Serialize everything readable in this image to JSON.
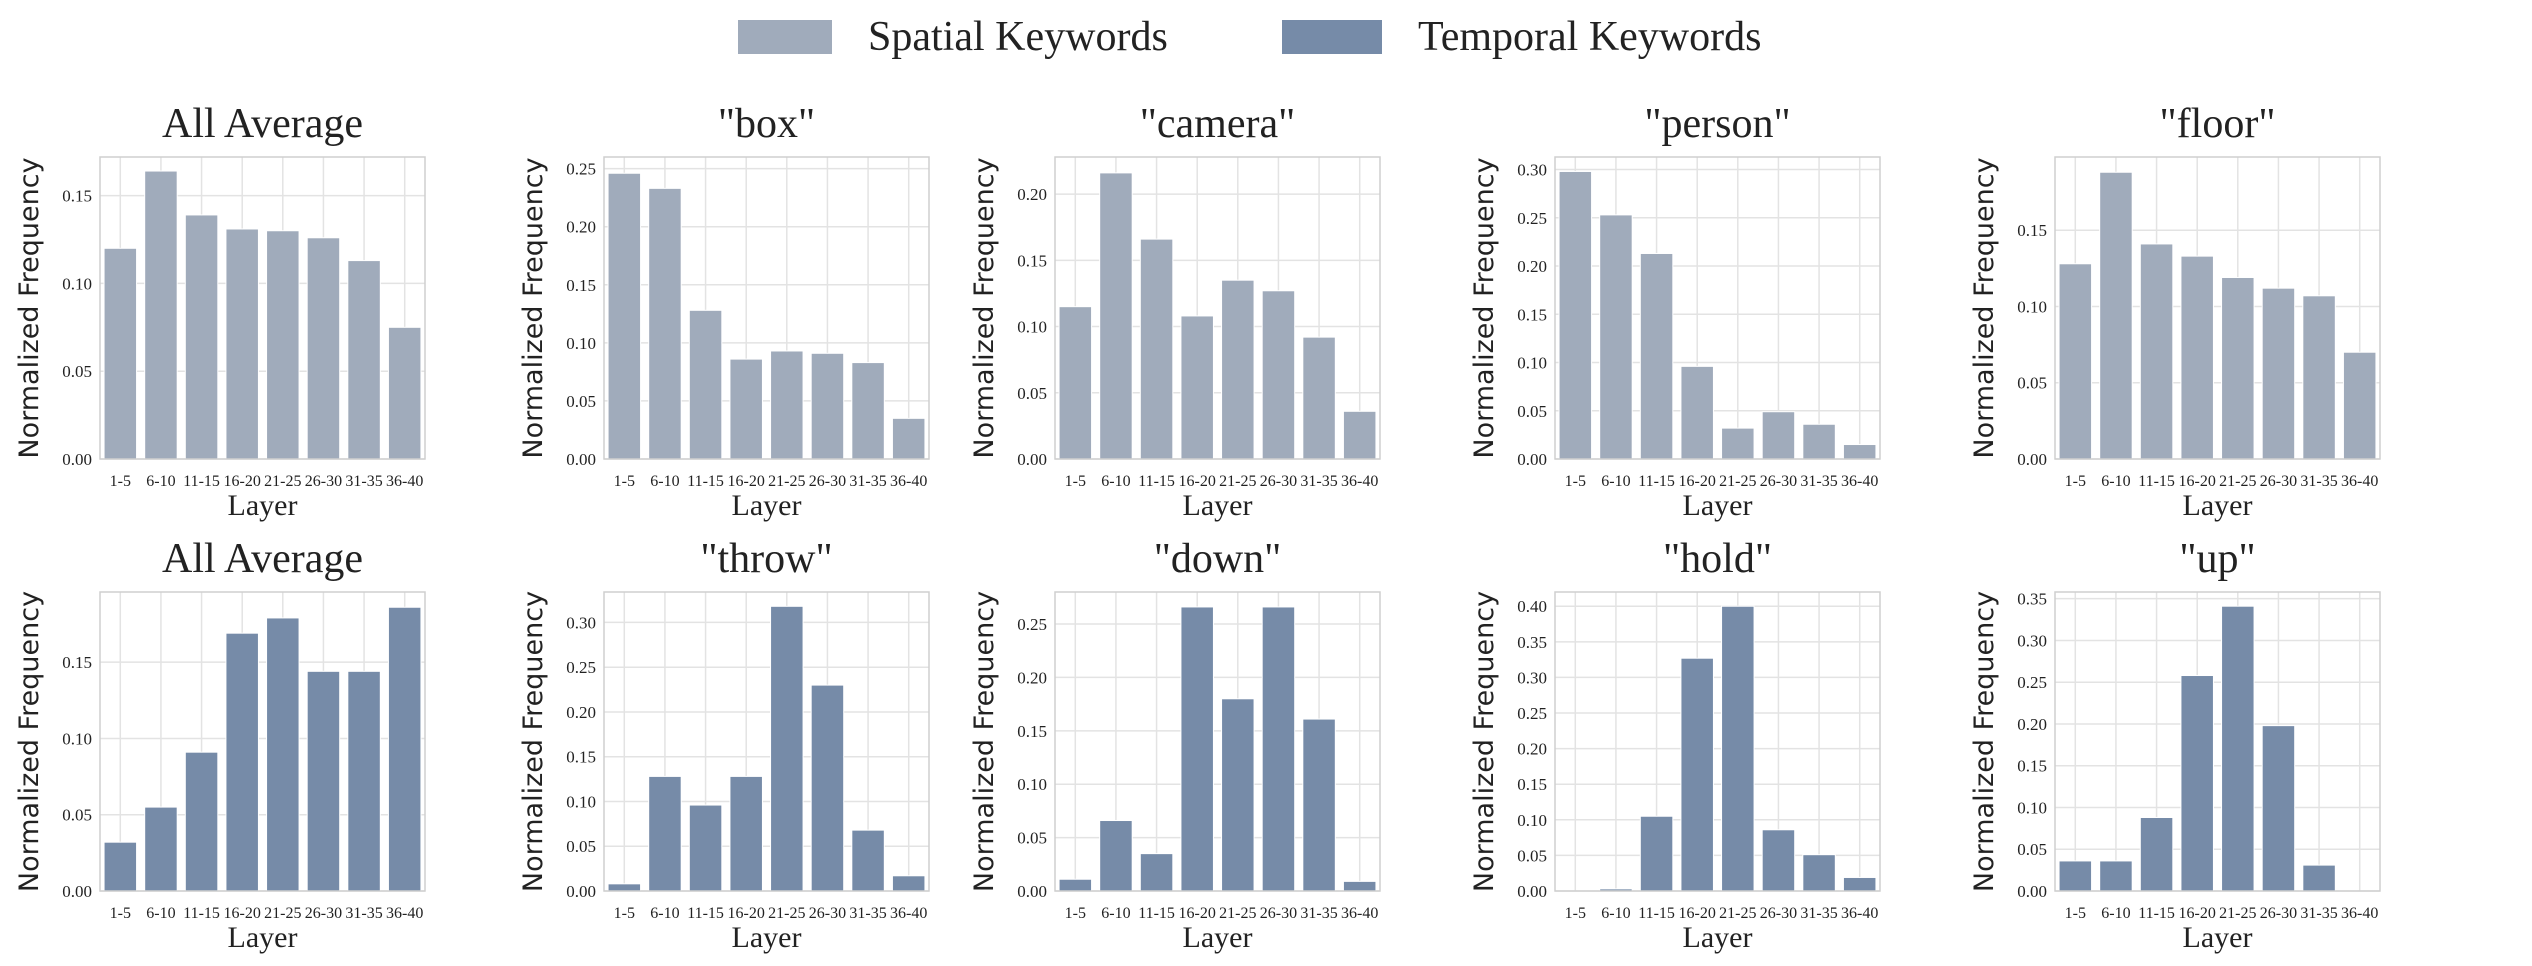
{
  "legend": [
    {
      "label": "Spatial Keywords",
      "color": "#a0abbb"
    },
    {
      "label": "Temporal Keywords",
      "color": "#768ba8"
    }
  ],
  "chart_data": [
    {
      "type": "bar",
      "title": "All Average",
      "series": "Spatial Keywords",
      "xlabel": "Layer",
      "ylabel": "Normalized Frequency",
      "categories": [
        "1-5",
        "6-10",
        "11-15",
        "16-20",
        "21-25",
        "26-30",
        "31-35",
        "36-40"
      ],
      "values": [
        0.12,
        0.164,
        0.139,
        0.131,
        0.13,
        0.126,
        0.113,
        0.075
      ],
      "ylim": [
        0,
        0.172
      ],
      "yticks": [
        0.0,
        0.05,
        0.1,
        0.15
      ],
      "grid": true
    },
    {
      "type": "bar",
      "title": "\"box\"",
      "series": "Spatial Keywords",
      "xlabel": "Layer",
      "ylabel": "Normalized Frequency",
      "categories": [
        "1-5",
        "6-10",
        "11-15",
        "16-20",
        "21-25",
        "26-30",
        "31-35",
        "36-40"
      ],
      "values": [
        0.246,
        0.233,
        0.128,
        0.086,
        0.093,
        0.091,
        0.083,
        0.035
      ],
      "ylim": [
        0,
        0.26
      ],
      "yticks": [
        0.0,
        0.05,
        0.1,
        0.15,
        0.2,
        0.25
      ],
      "grid": true
    },
    {
      "type": "bar",
      "title": "\"camera\"",
      "series": "Spatial Keywords",
      "xlabel": "Layer",
      "ylabel": "Normalized Frequency",
      "categories": [
        "1-5",
        "6-10",
        "11-15",
        "16-20",
        "21-25",
        "26-30",
        "31-35",
        "36-40"
      ],
      "values": [
        0.115,
        0.216,
        0.166,
        0.108,
        0.135,
        0.127,
        0.092,
        0.036
      ],
      "ylim": [
        0,
        0.228
      ],
      "yticks": [
        0.0,
        0.05,
        0.1,
        0.15,
        0.2
      ],
      "grid": true
    },
    {
      "type": "bar",
      "title": "\"person\"",
      "series": "Spatial Keywords",
      "xlabel": "Layer",
      "ylabel": "Normalized Frequency",
      "categories": [
        "1-5",
        "6-10",
        "11-15",
        "16-20",
        "21-25",
        "26-30",
        "31-35",
        "36-40"
      ],
      "values": [
        0.298,
        0.253,
        0.213,
        0.096,
        0.032,
        0.049,
        0.036,
        0.015
      ],
      "ylim": [
        0,
        0.313
      ],
      "yticks": [
        0.0,
        0.05,
        0.1,
        0.15,
        0.2,
        0.25,
        0.3
      ],
      "grid": true
    },
    {
      "type": "bar",
      "title": "\"floor\"",
      "series": "Spatial Keywords",
      "xlabel": "Layer",
      "ylabel": "Normalized Frequency",
      "categories": [
        "1-5",
        "6-10",
        "11-15",
        "16-20",
        "21-25",
        "26-30",
        "31-35",
        "36-40"
      ],
      "values": [
        0.128,
        0.188,
        0.141,
        0.133,
        0.119,
        0.112,
        0.107,
        0.07
      ],
      "ylim": [
        0,
        0.198
      ],
      "yticks": [
        0.0,
        0.05,
        0.1,
        0.15
      ],
      "grid": true
    },
    {
      "type": "bar",
      "title": "All Average",
      "series": "Temporal Keywords",
      "xlabel": "Layer",
      "ylabel": "Normalized Frequency",
      "categories": [
        "1-5",
        "6-10",
        "11-15",
        "16-20",
        "21-25",
        "26-30",
        "31-35",
        "36-40"
      ],
      "values": [
        0.032,
        0.055,
        0.091,
        0.169,
        0.179,
        0.144,
        0.144,
        0.186
      ],
      "ylim": [
        0,
        0.196
      ],
      "yticks": [
        0.0,
        0.05,
        0.1,
        0.15
      ],
      "grid": true
    },
    {
      "type": "bar",
      "title": "\"throw\"",
      "series": "Temporal Keywords",
      "xlabel": "Layer",
      "ylabel": "Normalized Frequency",
      "categories": [
        "1-5",
        "6-10",
        "11-15",
        "16-20",
        "21-25",
        "26-30",
        "31-35",
        "36-40"
      ],
      "values": [
        0.008,
        0.128,
        0.096,
        0.128,
        0.318,
        0.23,
        0.068,
        0.017
      ],
      "ylim": [
        0,
        0.334
      ],
      "yticks": [
        0.0,
        0.05,
        0.1,
        0.15,
        0.2,
        0.25,
        0.3
      ],
      "grid": true
    },
    {
      "type": "bar",
      "title": "\"down\"",
      "series": "Temporal Keywords",
      "xlabel": "Layer",
      "ylabel": "Normalized Frequency",
      "categories": [
        "1-5",
        "6-10",
        "11-15",
        "16-20",
        "21-25",
        "26-30",
        "31-35",
        "36-40"
      ],
      "values": [
        0.011,
        0.066,
        0.035,
        0.266,
        0.18,
        0.266,
        0.161,
        0.009
      ],
      "ylim": [
        0,
        0.28
      ],
      "yticks": [
        0.0,
        0.05,
        0.1,
        0.15,
        0.2,
        0.25
      ],
      "grid": true
    },
    {
      "type": "bar",
      "title": "\"hold\"",
      "series": "Temporal Keywords",
      "xlabel": "Layer",
      "ylabel": "Normalized Frequency",
      "categories": [
        "1-5",
        "6-10",
        "11-15",
        "16-20",
        "21-25",
        "26-30",
        "31-35",
        "36-40"
      ],
      "values": [
        0.0,
        0.003,
        0.105,
        0.327,
        0.4,
        0.086,
        0.051,
        0.019
      ],
      "ylim": [
        0,
        0.42
      ],
      "yticks": [
        0.0,
        0.05,
        0.1,
        0.15,
        0.2,
        0.25,
        0.3,
        0.35,
        0.4
      ],
      "grid": true
    },
    {
      "type": "bar",
      "title": "\"up\"",
      "series": "Temporal Keywords",
      "xlabel": "Layer",
      "ylabel": "Normalized Frequency",
      "categories": [
        "1-5",
        "6-10",
        "11-15",
        "16-20",
        "21-25",
        "26-30",
        "31-35",
        "36-40"
      ],
      "values": [
        0.036,
        0.036,
        0.088,
        0.258,
        0.341,
        0.198,
        0.031,
        0.0
      ],
      "ylim": [
        0,
        0.358
      ],
      "yticks": [
        0.0,
        0.05,
        0.1,
        0.15,
        0.2,
        0.25,
        0.3,
        0.35
      ],
      "grid": true
    }
  ]
}
